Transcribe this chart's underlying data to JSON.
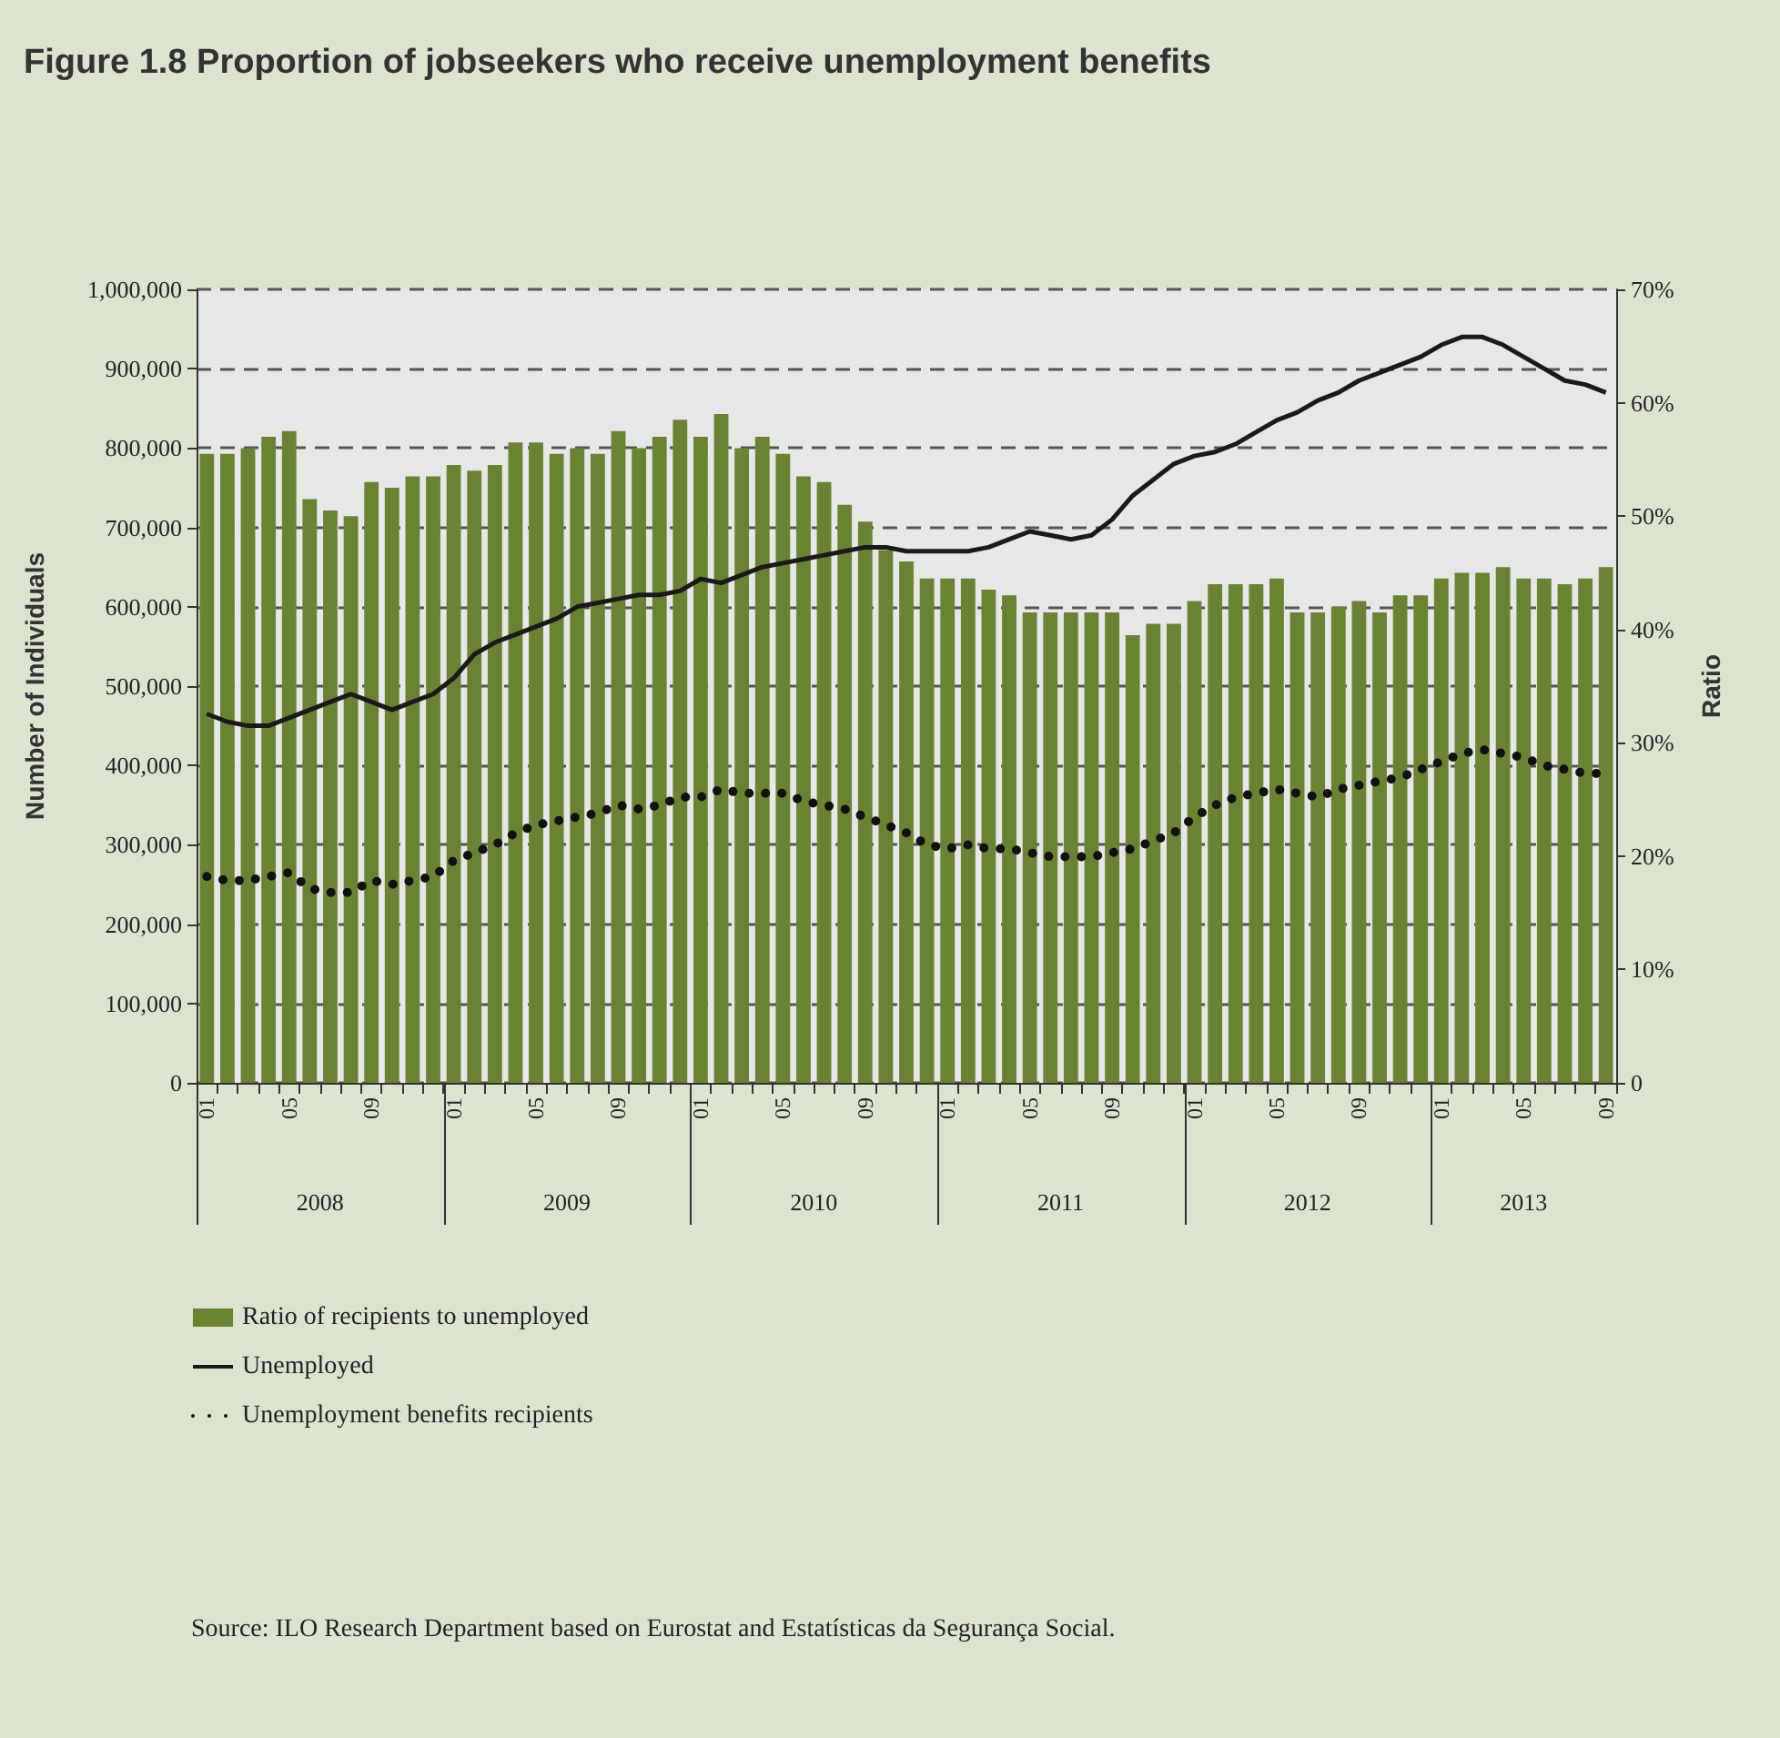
{
  "chart_data": {
    "type": "bar",
    "title": "Figure 1.8 Proportion of jobseekers who receive unemployment benefits",
    "ylabel": "Number of Individuals",
    "y2label": "Ratio",
    "categories": [
      "01",
      null,
      null,
      null,
      "05",
      null,
      null,
      null,
      "09",
      null,
      null,
      null,
      "01",
      null,
      null,
      null,
      "05",
      null,
      null,
      null,
      "09",
      null,
      null,
      null,
      "01",
      null,
      null,
      null,
      "05",
      null,
      null,
      null,
      "09",
      null,
      null,
      null,
      "01",
      null,
      null,
      null,
      "05",
      null,
      null,
      null,
      "09",
      null,
      null,
      null,
      "01",
      null,
      null,
      null,
      "05",
      null,
      null,
      null,
      "09",
      null,
      null,
      null,
      "01",
      null,
      null,
      null,
      "05",
      null,
      null,
      null,
      "09"
    ],
    "series": [
      {
        "name": "Ratio of recipients to unemployed",
        "axis": "y2",
        "color": "#6a8332",
        "values": [
          55.5,
          55.5,
          56,
          57,
          57.5,
          51.5,
          50.5,
          50,
          53,
          52.5,
          53.5,
          53.5,
          54.5,
          54,
          54.5,
          56.5,
          56.5,
          55.5,
          56,
          55.5,
          57.5,
          56,
          57,
          58.5,
          57,
          59,
          56,
          57,
          55.5,
          53.5,
          53,
          51,
          49.5,
          47,
          46,
          44.5,
          44.5,
          44.5,
          43.5,
          43,
          41.5,
          41.5,
          41.5,
          41.5,
          41.5,
          39.5,
          40.5,
          40.5,
          42.5,
          44,
          44,
          44,
          44.5,
          41.5,
          41.5,
          42,
          42.5,
          41.5,
          43,
          43,
          44.5,
          45,
          45,
          45.5,
          44.5,
          44.5,
          44,
          44.5,
          45.5
        ]
      },
      {
        "name": "Unemployed",
        "type": "line",
        "color": "#1a1a1a",
        "line_style": "solid",
        "values": [
          465000,
          455000,
          450000,
          450000,
          460000,
          470000,
          480000,
          490000,
          480000,
          470000,
          480000,
          490000,
          510000,
          540000,
          555000,
          565000,
          575000,
          585000,
          600000,
          605000,
          610000,
          615000,
          615000,
          620000,
          635000,
          630000,
          640000,
          650000,
          655000,
          660000,
          665000,
          670000,
          675000,
          675000,
          670000,
          670000,
          670000,
          670000,
          675000,
          685000,
          695000,
          690000,
          685000,
          690000,
          710000,
          740000,
          760000,
          780000,
          790000,
          795000,
          805000,
          820000,
          835000,
          845000,
          860000,
          870000,
          885000,
          895000,
          905000,
          915000,
          930000,
          940000,
          940000,
          930000,
          915000,
          900000,
          885000,
          880000,
          870000
        ]
      },
      {
        "name": "Unemployment benefits recipients",
        "type": "line",
        "color": "#111111",
        "line_style": "dotted",
        "values": [
          260000,
          255000,
          255000,
          260000,
          265000,
          245000,
          240000,
          240000,
          255000,
          250000,
          255000,
          260000,
          280000,
          290000,
          300000,
          315000,
          325000,
          330000,
          335000,
          340000,
          350000,
          345000,
          350000,
          360000,
          360000,
          370000,
          365000,
          365000,
          365000,
          355000,
          350000,
          345000,
          335000,
          325000,
          315000,
          300000,
          295000,
          300000,
          295000,
          295000,
          290000,
          285000,
          285000,
          285000,
          290000,
          295000,
          305000,
          315000,
          335000,
          350000,
          360000,
          365000,
          370000,
          365000,
          360000,
          370000,
          375000,
          380000,
          385000,
          395000,
          405000,
          415000,
          420000,
          415000,
          410000,
          400000,
          395000,
          390000,
          390000
        ]
      }
    ],
    "ylim": [
      0,
      1000000
    ],
    "yticks": [
      0,
      {
        "value": 100000,
        "label": "100,000"
      },
      {
        "value": 200000,
        "label": "200,000"
      },
      {
        "value": 300000,
        "label": "300,000"
      },
      {
        "value": 400000,
        "label": "400,000"
      },
      {
        "value": 500000,
        "label": "500,000"
      },
      {
        "value": 600000,
        "label": "600,000"
      },
      {
        "value": 700000,
        "label": "700,000"
      },
      {
        "value": 800000,
        "label": "800,000"
      },
      {
        "value": 900000,
        "label": "900,000"
      },
      {
        "value": 1000000,
        "label": "1,000,000"
      }
    ],
    "y2lim": [
      0,
      70
    ],
    "y2ticks": [
      0,
      {
        "value": 10,
        "label": "10%"
      },
      {
        "value": 20,
        "label": "20%"
      },
      {
        "value": 30,
        "label": "30%"
      },
      {
        "value": 40,
        "label": "40%"
      },
      {
        "value": 50,
        "label": "50%"
      },
      {
        "value": 60,
        "label": "60%"
      },
      {
        "value": 70,
        "label": "70%"
      }
    ],
    "grid": "y",
    "legend": "bottom",
    "marker": "none",
    "annotations": [
      "2008",
      "2009",
      "2010",
      "2011",
      "2012",
      "2013",
      "Source: ILO Research Department based on Eurostat and Estatísticas da Segurança Social."
    ]
  }
}
